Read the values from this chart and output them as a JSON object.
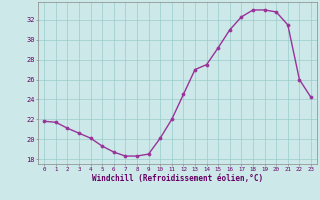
{
  "x": [
    0,
    1,
    2,
    3,
    4,
    5,
    6,
    7,
    8,
    9,
    10,
    11,
    12,
    13,
    14,
    15,
    16,
    17,
    18,
    19,
    20,
    21,
    22,
    23
  ],
  "y": [
    21.8,
    21.7,
    21.1,
    20.6,
    20.1,
    19.3,
    18.7,
    18.3,
    18.3,
    18.5,
    20.1,
    22.0,
    24.5,
    27.0,
    27.5,
    29.2,
    31.0,
    32.3,
    33.0,
    33.0,
    32.8,
    31.5,
    26.0,
    24.2
  ],
  "xlabel": "Windchill (Refroidissement éolien,°C)",
  "xlim": [
    -0.5,
    23.5
  ],
  "ylim": [
    17.5,
    33.8
  ],
  "yticks": [
    18,
    20,
    22,
    24,
    26,
    28,
    30,
    32
  ],
  "xticks": [
    0,
    1,
    2,
    3,
    4,
    5,
    6,
    7,
    8,
    9,
    10,
    11,
    12,
    13,
    14,
    15,
    16,
    17,
    18,
    19,
    20,
    21,
    22,
    23
  ],
  "xtick_labels": [
    "0",
    "1",
    "2",
    "3",
    "4",
    "5",
    "6",
    "7",
    "8",
    "9",
    "10",
    "11",
    "12",
    "13",
    "14",
    "15",
    "16",
    "17",
    "18",
    "19",
    "20",
    "21",
    "22",
    "23"
  ],
  "line_color": "#993399",
  "marker": "o",
  "markersize": 2.2,
  "linewidth": 1.0,
  "bg_color": "#cce8e8",
  "grid_color": "#99cccc",
  "tick_color": "#660066",
  "label_color": "#660066",
  "spine_color": "#888888"
}
